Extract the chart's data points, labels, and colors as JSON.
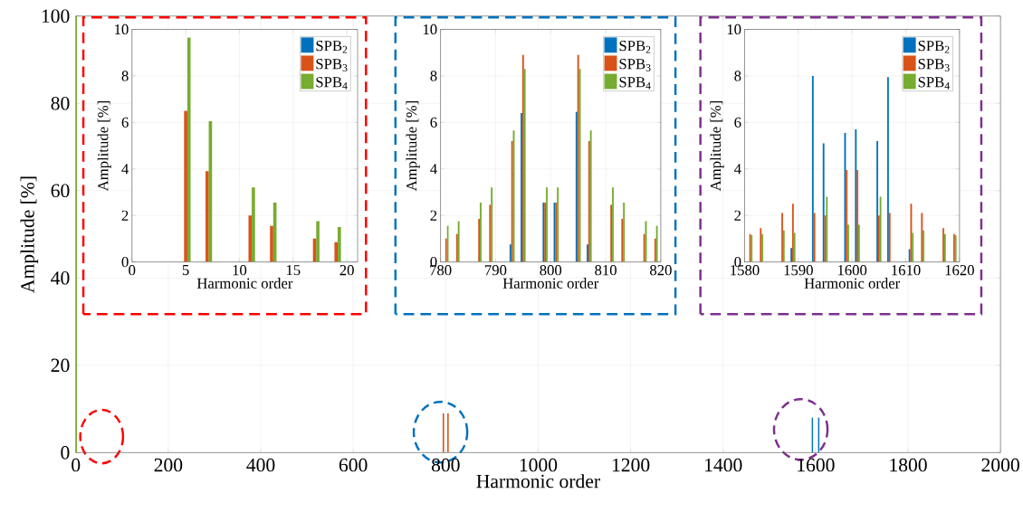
{
  "chart_data": [
    {
      "type": "bar",
      "xlabel": "Harmonic order",
      "ylabel": "Amplitude [%]",
      "xlim": [
        0,
        2000
      ],
      "ylim": [
        0,
        100
      ],
      "xticks": [
        0,
        200,
        400,
        600,
        800,
        1000,
        1200,
        1400,
        1600,
        1800,
        2000
      ],
      "yticks": [
        0,
        20,
        40,
        60,
        80,
        100
      ],
      "grid": true,
      "legend": false,
      "series": [
        {
          "color": "#0072bd",
          "x": [
            1593,
            1607
          ],
          "values": [
            8,
            8
          ]
        },
        {
          "color": "#d95319",
          "x": [
            795,
            805
          ],
          "values": [
            9,
            9
          ]
        },
        {
          "color": "#77ac30",
          "x": [
            1
          ],
          "values": [
            100
          ]
        }
      ]
    },
    {
      "type": "bar",
      "xlabel": "Harmonic order",
      "ylabel": "Amplitude [%]",
      "xlim": [
        0,
        21
      ],
      "ylim": [
        0,
        10
      ],
      "xticks": [
        0,
        5,
        10,
        15,
        20
      ],
      "yticks": [
        0,
        2,
        4,
        6,
        8,
        10
      ],
      "grid": true,
      "legend": "top right",
      "x": [
        5,
        7,
        11,
        13,
        17,
        19
      ],
      "series": [
        {
          "name": "SPB$_{2}$",
          "color": "#0072bd",
          "values": [
            0,
            0,
            0,
            0,
            0,
            0
          ]
        },
        {
          "name": "SPB$_{3}$",
          "color": "#d95319",
          "values": [
            6.5,
            3.9,
            2.0,
            1.55,
            1.0,
            0.85
          ]
        },
        {
          "name": "SPB$_{4}$",
          "color": "#77ac30",
          "values": [
            9.65,
            6.05,
            3.2,
            2.55,
            1.75,
            1.5
          ]
        }
      ]
    },
    {
      "type": "bar",
      "xlabel": "Harmonic order",
      "ylabel": "Amplitude [%]",
      "xlim": [
        780,
        820
      ],
      "ylim": [
        0,
        10
      ],
      "xticks": [
        780,
        790,
        800,
        810,
        820
      ],
      "yticks": [
        0,
        2,
        4,
        6,
        8,
        10
      ],
      "grid": true,
      "legend": "top right",
      "x": [
        781,
        783,
        787,
        789,
        793,
        795,
        799,
        801,
        805,
        807,
        811,
        813,
        817,
        819
      ],
      "series": [
        {
          "name": "SPB$_{2}$",
          "color": "#0072bd",
          "values": [
            0,
            0,
            0,
            0,
            0.75,
            6.4,
            2.55,
            2.55,
            6.45,
            0.75,
            0,
            0,
            0,
            0
          ]
        },
        {
          "name": "SPB$_{3}$",
          "color": "#d95319",
          "values": [
            1.0,
            1.2,
            1.85,
            2.45,
            5.2,
            8.9,
            2.55,
            2.55,
            8.9,
            5.2,
            2.45,
            1.85,
            1.2,
            1.0
          ]
        },
        {
          "name": "SPB$_{4}$",
          "color": "#77ac30",
          "values": [
            1.55,
            1.75,
            2.55,
            3.2,
            5.65,
            8.3,
            3.2,
            3.2,
            8.3,
            5.65,
            3.2,
            2.55,
            1.75,
            1.55
          ]
        }
      ]
    },
    {
      "type": "bar",
      "xlabel": "Harmonic order",
      "ylabel": "Amplitude [%]",
      "xlim": [
        1580,
        1620
      ],
      "ylim": [
        0,
        10
      ],
      "xticks": [
        1580,
        1590,
        1600,
        1610,
        1620
      ],
      "yticks": [
        0,
        2,
        4,
        6,
        8,
        10
      ],
      "grid": true,
      "legend": "top right",
      "x": [
        1581,
        1583,
        1587,
        1589,
        1593,
        1595,
        1599,
        1601,
        1605,
        1607,
        1611,
        1613,
        1617,
        1619
      ],
      "series": [
        {
          "name": "SPB$_{2}$",
          "color": "#0072bd",
          "values": [
            0,
            0,
            0,
            0.6,
            8.0,
            5.1,
            5.55,
            5.7,
            5.2,
            7.95,
            0.55,
            0,
            0,
            0
          ]
        },
        {
          "name": "SPB$_{3}$",
          "color": "#d95319",
          "values": [
            1.2,
            1.45,
            2.1,
            2.5,
            2.1,
            2.0,
            3.95,
            3.95,
            2.0,
            2.1,
            2.5,
            2.1,
            1.45,
            1.2
          ]
        },
        {
          "name": "SPB$_{4}$",
          "color": "#77ac30",
          "values": [
            1.15,
            1.2,
            1.35,
            1.25,
            0,
            2.8,
            1.6,
            1.6,
            2.8,
            0,
            1.25,
            1.35,
            1.2,
            1.15
          ]
        }
      ]
    }
  ]
}
